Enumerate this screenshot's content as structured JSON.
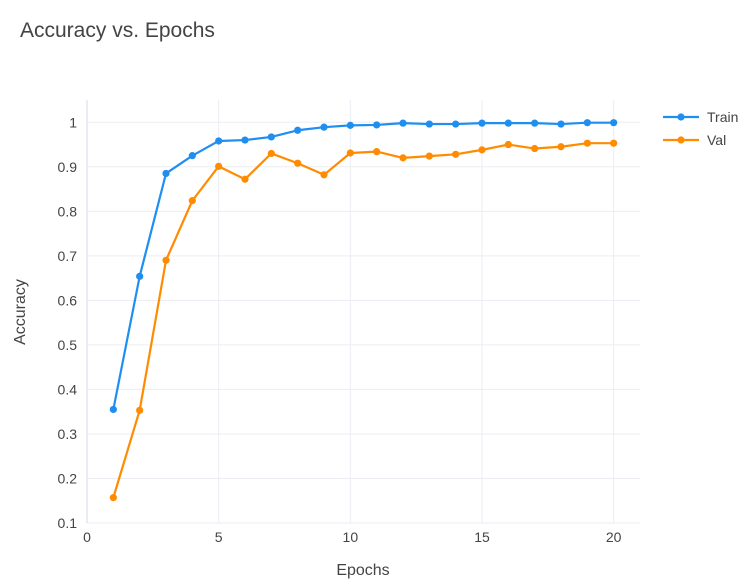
{
  "chart_data": {
    "type": "line",
    "title": "Accuracy vs. Epochs",
    "xlabel": "Epochs",
    "ylabel": "Accuracy",
    "xlim": [
      0,
      21
    ],
    "ylim": [
      0.1,
      1.05
    ],
    "xticks": [
      0,
      5,
      10,
      15,
      20
    ],
    "yticks": [
      0.1,
      0.2,
      0.3,
      0.4,
      0.5,
      0.6,
      0.7,
      0.8,
      0.9,
      1
    ],
    "grid": true,
    "legend_position": "top-right",
    "x": [
      1,
      2,
      3,
      4,
      5,
      6,
      7,
      8,
      9,
      10,
      11,
      12,
      13,
      14,
      15,
      16,
      17,
      18,
      19,
      20
    ],
    "series": [
      {
        "name": "Train",
        "color": "#1f8ef1",
        "values": [
          0.355,
          0.654,
          0.885,
          0.925,
          0.958,
          0.96,
          0.967,
          0.982,
          0.989,
          0.993,
          0.994,
          0.998,
          0.996,
          0.996,
          0.998,
          0.998,
          0.998,
          0.996,
          0.999,
          0.999
        ]
      },
      {
        "name": "Val",
        "color": "#ff8c00",
        "values": [
          0.157,
          0.353,
          0.69,
          0.824,
          0.901,
          0.872,
          0.93,
          0.908,
          0.882,
          0.931,
          0.934,
          0.92,
          0.924,
          0.928,
          0.938,
          0.95,
          0.941,
          0.945,
          0.953,
          0.953
        ]
      }
    ]
  }
}
